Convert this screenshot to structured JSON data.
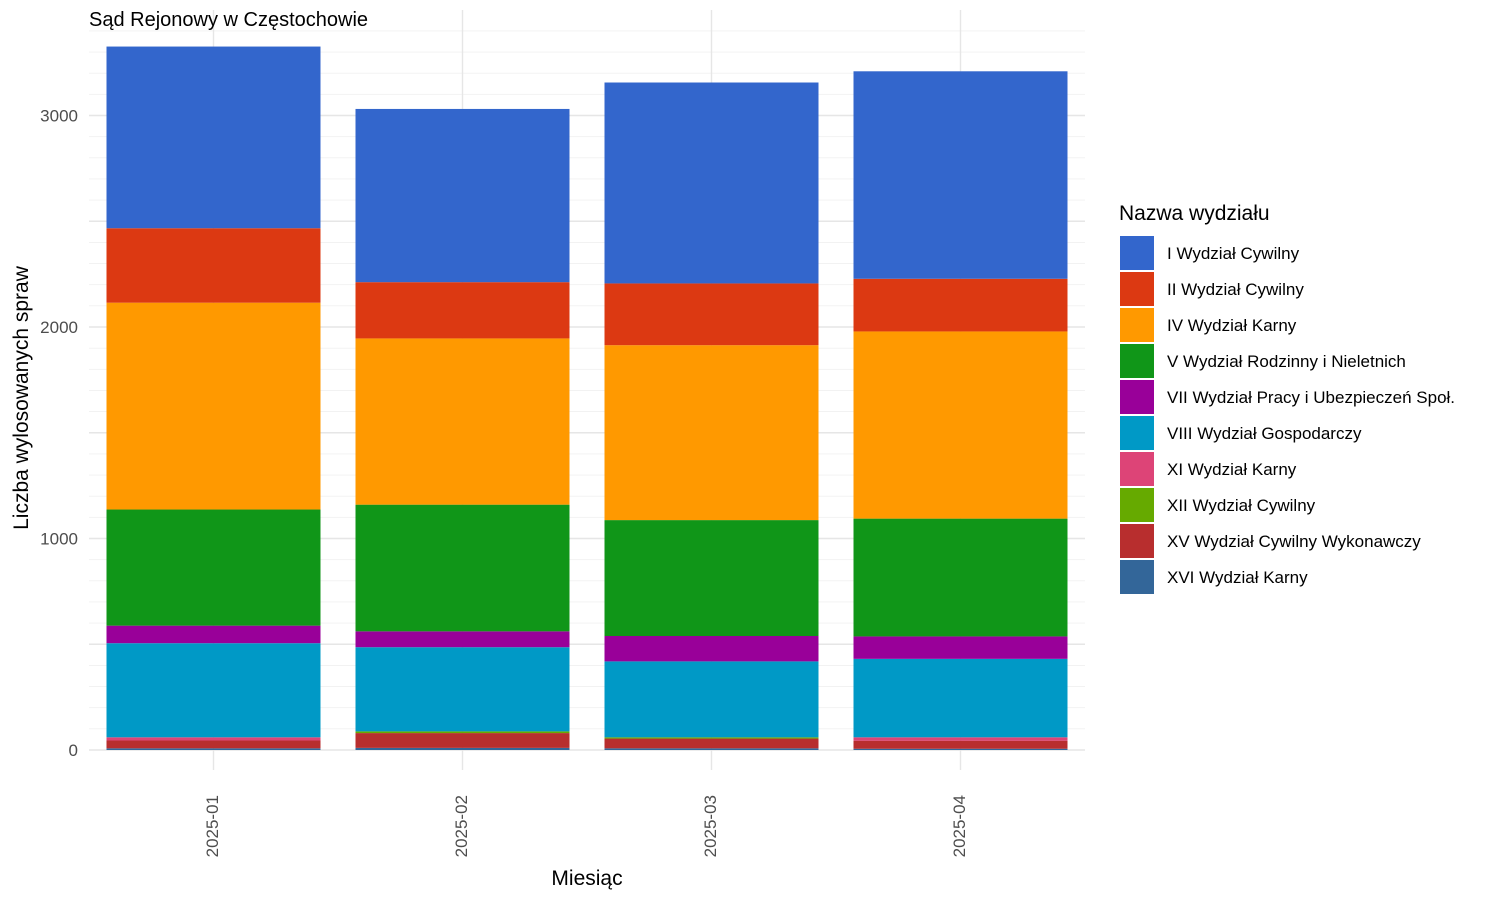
{
  "chart_data": {
    "type": "bar",
    "stacked": true,
    "title": "Sąd Rejonowy w Częstochowie",
    "xlabel": "Miesiąc",
    "ylabel": "Liczba wylosowanych spraw",
    "ylim": [
      0,
      3400
    ],
    "y_ticks": [
      0,
      1000,
      2000,
      3000
    ],
    "grid": true,
    "legend_title": "Nazwa wydziału",
    "legend_position": "right",
    "categories": [
      "2025-01",
      "2025-02",
      "2025-03",
      "2025-04"
    ],
    "series": [
      {
        "name": "XVI Wydział Karny",
        "color": "#336699",
        "values": [
          8,
          10,
          8,
          6
        ]
      },
      {
        "name": "XV Wydział Cywilny Wykonawczy",
        "color": "#B82E2E",
        "values": [
          37,
          70,
          46,
          38
        ]
      },
      {
        "name": "XII Wydział Cywilny",
        "color": "#66AA00",
        "values": [
          0,
          8,
          6,
          0
        ]
      },
      {
        "name": "XI Wydział Karny",
        "color": "#DD4477",
        "values": [
          15,
          0,
          0,
          16
        ]
      },
      {
        "name": "VIII Wydział Gospodarczy",
        "color": "#0099C6",
        "values": [
          445,
          398,
          359,
          371
        ]
      },
      {
        "name": "VII Wydział Pracy i Ubezpieczeń Społ.",
        "color": "#990099",
        "values": [
          83,
          75,
          120,
          106
        ]
      },
      {
        "name": "V Wydział Rodzinny i Nieletnich",
        "color": "#109618",
        "values": [
          549,
          599,
          548,
          557
        ]
      },
      {
        "name": "IV Wydział Karny",
        "color": "#FF9900",
        "values": [
          978,
          786,
          827,
          885
        ]
      },
      {
        "name": "II Wydział Cywilny",
        "color": "#DC3912",
        "values": [
          352,
          266,
          292,
          249
        ]
      },
      {
        "name": "I Wydział Cywilny",
        "color": "#3366CC",
        "values": [
          859,
          819,
          950,
          981
        ]
      }
    ],
    "legend_order": [
      "I Wydział Cywilny",
      "II Wydział Cywilny",
      "IV Wydział Karny",
      "V Wydział Rodzinny i Nieletnich",
      "VII Wydział Pracy i Ubezpieczeń Społ.",
      "VIII Wydział Gospodarczy",
      "XI Wydział Karny",
      "XII Wydział Cywilny",
      "XV Wydział Cywilny Wykonawczy",
      "XVI Wydział Karny"
    ]
  }
}
